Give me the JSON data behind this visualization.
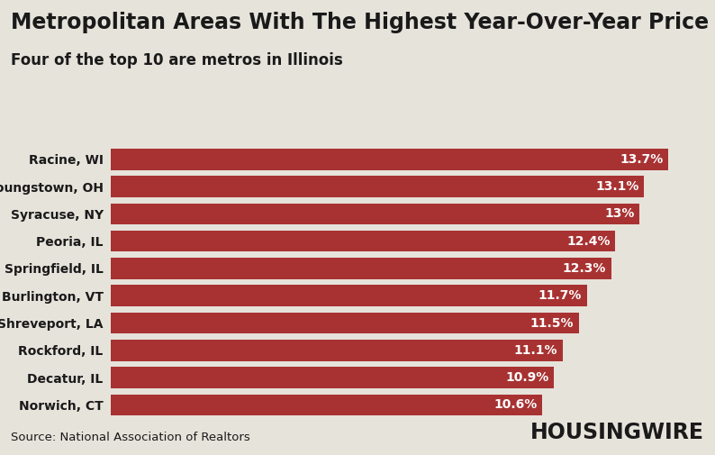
{
  "title": "Metropolitan Areas With The Highest Year-Over-Year Price rises",
  "subtitle": "Four of the top 10 are metros in Illinois",
  "categories": [
    "Racine, WI",
    "Youngstown, OH",
    "Syracuse, NY",
    "Peoria, IL",
    "Springfield, IL",
    "Burlington, VT",
    "Shreveport, LA",
    "Rockford, IL",
    "Decatur, IL",
    "Norwich, CT"
  ],
  "values": [
    13.7,
    13.1,
    13.0,
    12.4,
    12.3,
    11.7,
    11.5,
    11.1,
    10.9,
    10.6
  ],
  "labels": [
    "13.7%",
    "13.1%",
    "13%",
    "12.4%",
    "12.3%",
    "11.7%",
    "11.5%",
    "11.1%",
    "10.9%",
    "10.6%"
  ],
  "bar_color": "#a83232",
  "background_color": "#e6e3db",
  "text_color": "#1a1a1a",
  "label_color": "#ffffff",
  "source_text": "Source: National Association of Realtors",
  "brand_text": "HOUSINGWIRE",
  "title_fontsize": 17,
  "subtitle_fontsize": 12,
  "bar_label_fontsize": 10,
  "category_fontsize": 10,
  "source_fontsize": 9.5,
  "brand_fontsize": 17,
  "xlim": [
    0,
    14.5
  ]
}
